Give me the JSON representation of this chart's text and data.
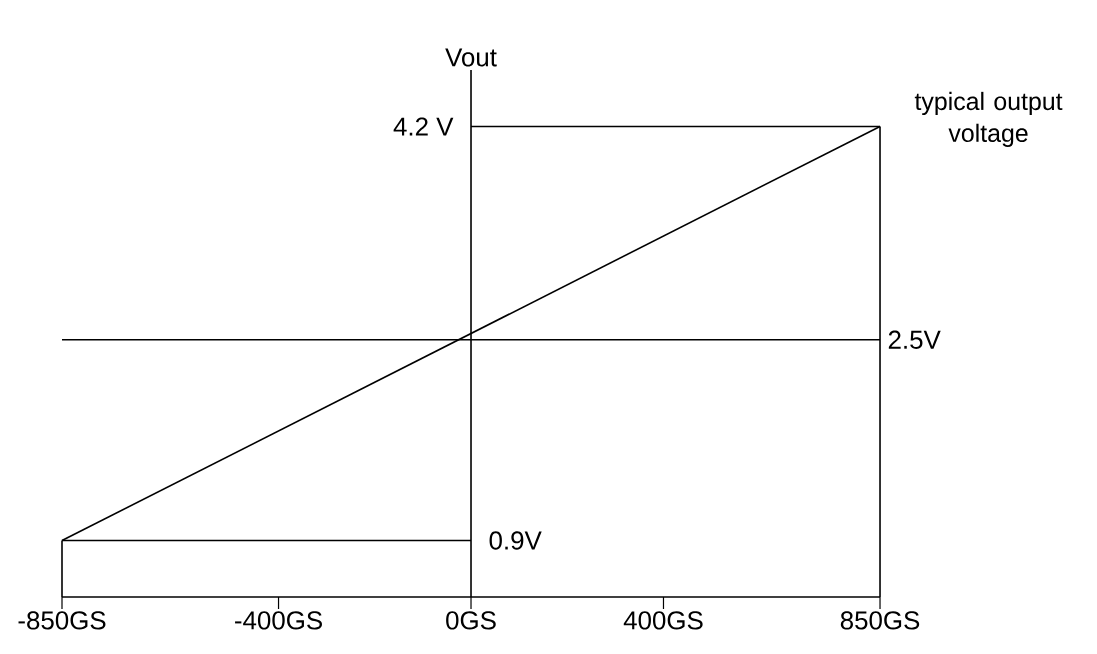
{
  "chart_data": {
    "type": "line",
    "ylabel": "Vout",
    "x": [
      -850,
      850
    ],
    "series": [
      {
        "color": "#000000",
        "values": [
          0.9,
          4.2
        ]
      }
    ],
    "xlim": [
      -850,
      850
    ],
    "ylim": [
      0.45,
      4.65
    ],
    "xticks": [
      {
        "value": -850,
        "label": "-850GS"
      },
      {
        "value": -400,
        "label": "-400GS"
      },
      {
        "value": 0,
        "label": "0GS"
      },
      {
        "value": 400,
        "label": "400GS"
      },
      {
        "value": 850,
        "label": "850GS"
      }
    ],
    "tick_labels": "x",
    "ref_lines": [
      {
        "axis": "y",
        "value": 0.9,
        "label": "0.9V"
      },
      {
        "axis": "y",
        "value": 2.5,
        "label": "2.5V"
      },
      {
        "axis": "y",
        "value": 4.2,
        "label": "4.2 V"
      }
    ],
    "annotations": [
      "typical output voltage"
    ],
    "marker": "none",
    "line_style": "solid"
  }
}
